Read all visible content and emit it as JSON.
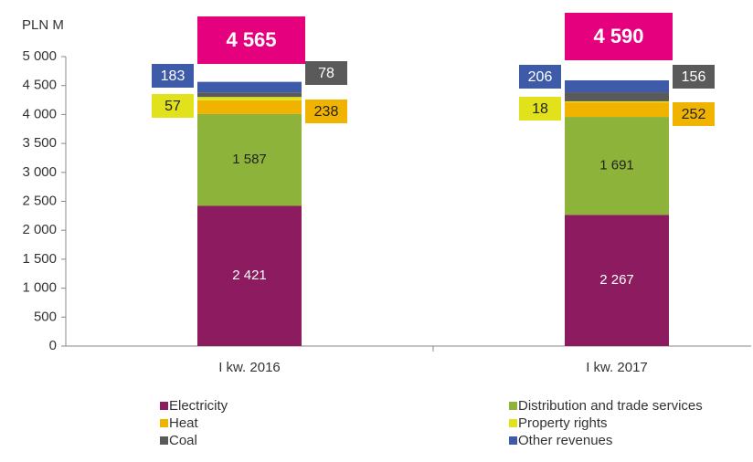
{
  "chart_data": {
    "type": "stacked-bar",
    "y_unit": "PLN M",
    "categories": [
      "I kw. 2016",
      "I kw. 2017"
    ],
    "series": [
      {
        "name": "Electricity",
        "color": "#8c1b5f",
        "values": [
          2421,
          2267
        ],
        "value_labels": [
          "2 421",
          "2 267"
        ]
      },
      {
        "name": "Distribution and trade services",
        "color": "#8db33a",
        "values": [
          1587,
          1691
        ],
        "value_labels": [
          "1 587",
          "1 691"
        ]
      },
      {
        "name": "Heat",
        "color": "#f0b400",
        "values": [
          238,
          252
        ]
      },
      {
        "name": "Property rights",
        "color": "#e2e21c",
        "values": [
          57,
          18
        ]
      },
      {
        "name": "Coal",
        "color": "#5a5a5a",
        "values": [
          78,
          156
        ]
      },
      {
        "name": "Other revenues",
        "color": "#3d5ba8",
        "values": [
          183,
          206
        ]
      }
    ],
    "totals": [
      4565,
      4590
    ],
    "total_labels": [
      "4 565",
      "4 590"
    ],
    "total_color": "#e5007d",
    "ylim": [
      0,
      5000
    ],
    "yticks": [
      0,
      500,
      {
        "value": 1000,
        "label": "1 000"
      },
      {
        "value": 1500,
        "label": "1 500"
      },
      {
        "value": 2000,
        "label": "2 000"
      },
      {
        "value": 2500,
        "label": "2 500"
      },
      {
        "value": 3000,
        "label": "3 000"
      },
      {
        "value": 3500,
        "label": "3 500"
      },
      {
        "value": 4000,
        "label": "4 000"
      },
      {
        "value": 4500,
        "label": "4 500"
      },
      {
        "value": 5000,
        "label": "5 000"
      }
    ]
  }
}
